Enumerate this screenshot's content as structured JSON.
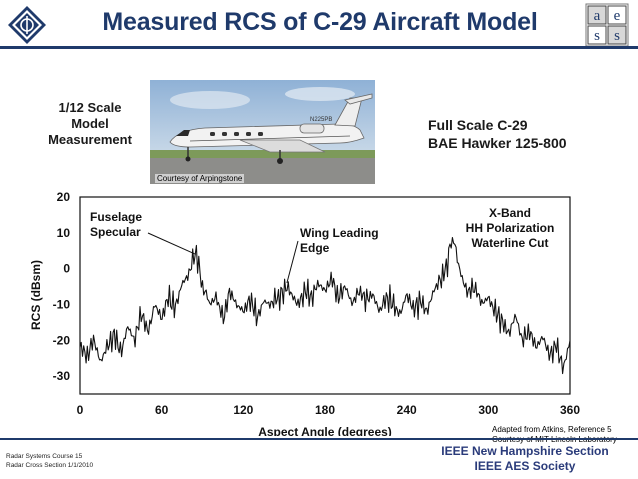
{
  "slide": {
    "title": "Measured RCS of C-29 Aircraft Model",
    "model_label": [
      "1/12 Scale",
      "Model",
      "Measurement"
    ],
    "fullscale_label": [
      "Full Scale C-29",
      "BAE Hawker 125-800"
    ],
    "photo_credit": "Courtesy of Arpingstone",
    "photo_tail_number": "N225PB",
    "footer_left": [
      "Radar Systems Course    15",
      "Radar Cross Section  1/1/2010"
    ],
    "footer_right": [
      "IEEE New Hampshire Section",
      "IEEE AES Society"
    ],
    "adapted_note": [
      "Adapted from Atkins, Reference 5",
      "Courtesy of MIT Lincoln Laboratory"
    ],
    "logo_right_letters": [
      "a",
      "e",
      "s",
      "s"
    ]
  },
  "chart_data": {
    "type": "line",
    "title": "",
    "xlabel": "Aspect Angle (degrees)",
    "ylabel": "RCS (dBsm)",
    "xlim": [
      0,
      360
    ],
    "ylim": [
      -35,
      20
    ],
    "xticks": [
      0,
      60,
      120,
      180,
      240,
      300,
      360
    ],
    "yticks": [
      20,
      10,
      0,
      -10,
      -20,
      -30
    ],
    "grid": false,
    "legend": "none",
    "annotations": [
      {
        "text": [
          "Fuselage",
          "Specular"
        ],
        "x": 85,
        "y": 4
      },
      {
        "text": [
          "Wing Leading",
          "Edge"
        ],
        "x": 152,
        "y": -4
      },
      {
        "text": [
          "X-Band",
          "HH Polarization",
          "Waterline Cut"
        ],
        "x": 358,
        "y": 6
      }
    ],
    "series": [
      {
        "x": [
          0,
          5,
          10,
          15,
          20,
          25,
          30,
          35,
          40,
          45,
          50,
          55,
          60,
          65,
          70,
          75,
          80,
          83,
          85,
          87,
          90,
          93,
          95,
          100,
          105,
          110,
          115,
          120,
          125,
          130,
          135,
          140,
          145,
          150,
          152,
          155,
          160,
          165,
          170,
          175,
          180,
          185,
          190,
          195,
          200,
          205,
          210,
          215,
          220,
          225,
          230,
          235,
          240,
          245,
          250,
          255,
          260,
          265,
          270,
          272,
          275,
          277,
          280,
          285,
          290,
          295,
          300,
          305,
          310,
          315,
          320,
          325,
          330,
          335,
          340,
          345,
          350,
          355,
          360
        ],
        "y": [
          -22,
          -24,
          -20,
          -26,
          -22,
          -18,
          -24,
          -16,
          -20,
          -12,
          -18,
          -10,
          -14,
          -8,
          -11,
          -4,
          -2,
          3,
          4,
          1,
          -5,
          -7,
          -10,
          -8,
          -14,
          -6,
          -10,
          -12,
          -8,
          -14,
          -9,
          -10,
          -8,
          -6,
          -5,
          -7,
          -10,
          -6,
          -8,
          -4,
          -6,
          -3,
          -8,
          -5,
          -10,
          -6,
          -9,
          -7,
          -12,
          -8,
          -10,
          -13,
          -7,
          -11,
          -9,
          -12,
          -6,
          -3,
          2,
          7,
          8,
          3,
          -2,
          -7,
          -5,
          -10,
          -8,
          -12,
          -14,
          -18,
          -13,
          -20,
          -17,
          -22,
          -19,
          -24,
          -21,
          -28,
          -20
        ]
      }
    ]
  }
}
